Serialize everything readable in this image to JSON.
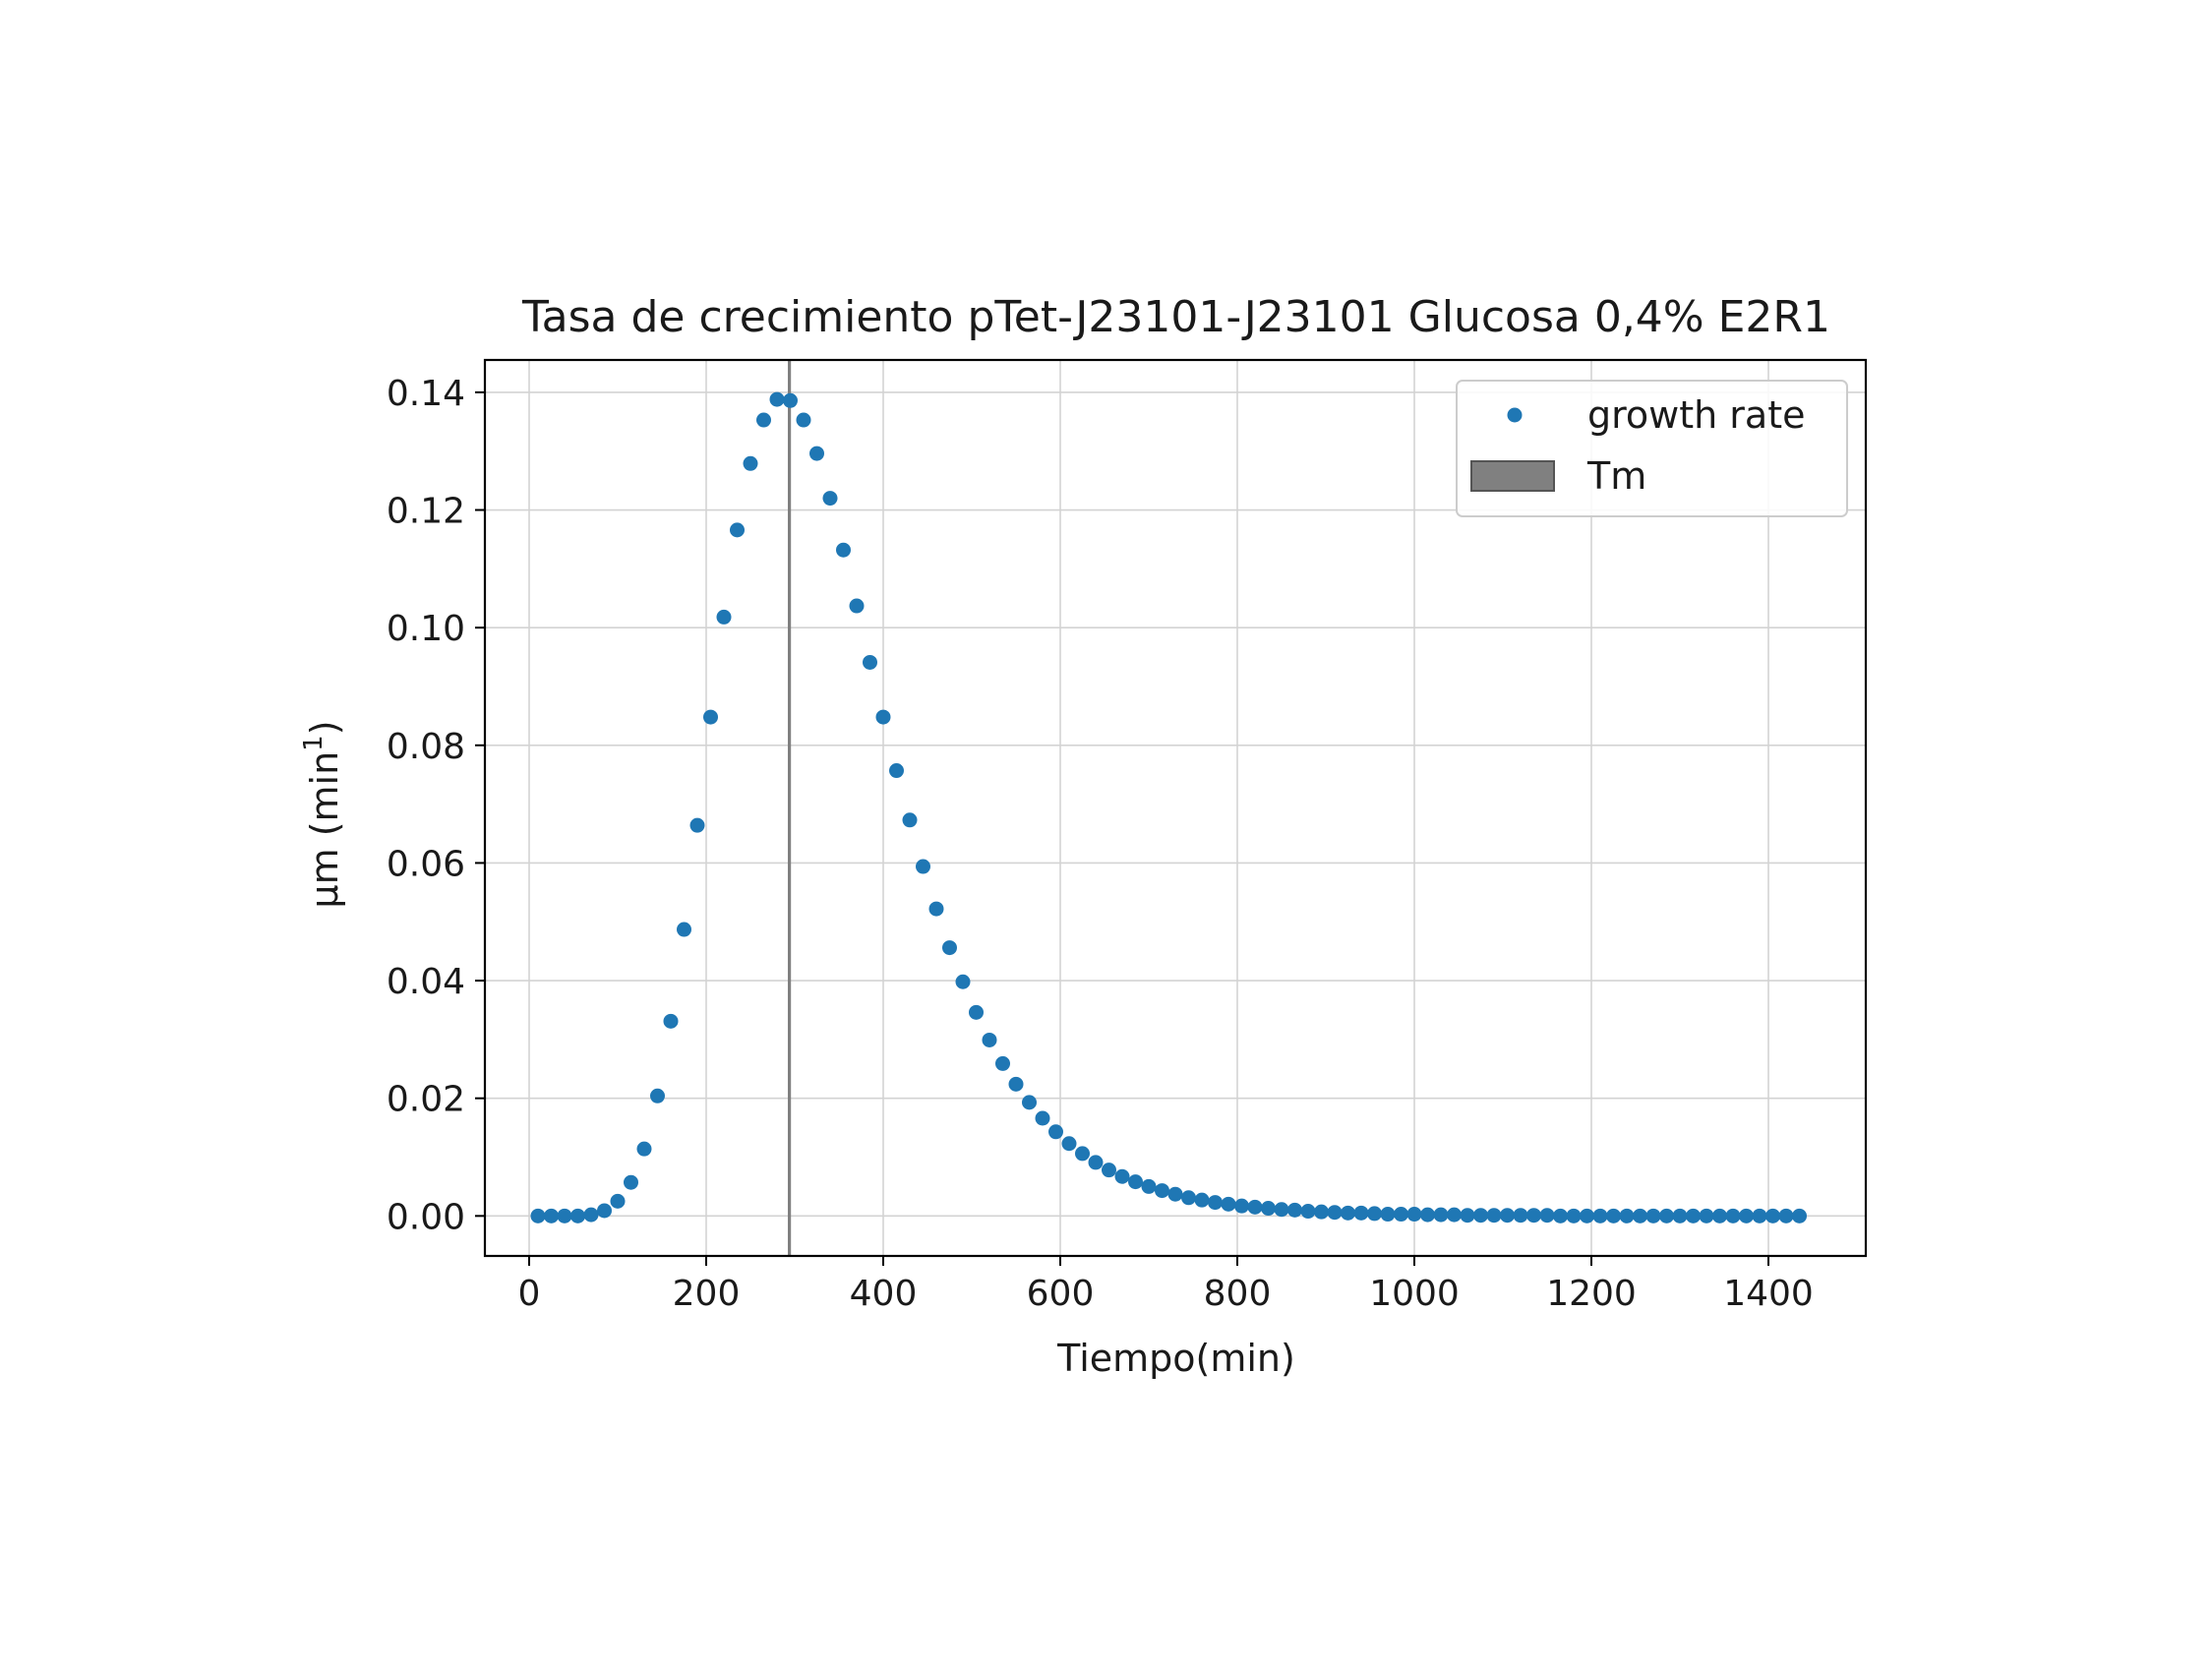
{
  "chart_data": {
    "type": "scatter",
    "title": "Tasa de crecimiento pTet-J23101-J23101 Glucosa 0,4% E2R1",
    "xlabel": "Tiempo(min)",
    "ylabel": "μm (min",
    "ylabel_sup": "1",
    "ylabel_close": ")",
    "xlim": [
      -50,
      1510
    ],
    "ylim": [
      -0.0068,
      0.1455
    ],
    "xticks": [
      0,
      200,
      400,
      600,
      800,
      1000,
      1200,
      1400
    ],
    "xtick_labels": [
      "0",
      "200",
      "400",
      "600",
      "800",
      "1000",
      "1200",
      "1400"
    ],
    "yticks": [
      0.0,
      0.02,
      0.04,
      0.06,
      0.08,
      0.1,
      0.12,
      0.14
    ],
    "ytick_labels": [
      "0.00",
      "0.02",
      "0.04",
      "0.06",
      "0.08",
      "0.10",
      "0.12",
      "0.14"
    ],
    "grid": true,
    "legend_position": "top-right",
    "colors": {
      "series": "#1f77b4",
      "tm_line": "#808080",
      "grid": "#d3d3d3"
    },
    "series": [
      {
        "name": "growth rate",
        "x": [
          10,
          25,
          40,
          55,
          70,
          85,
          100,
          115,
          130,
          145,
          160,
          175,
          190,
          205,
          220,
          235,
          250,
          265,
          280,
          295,
          310,
          325,
          340,
          355,
          370,
          385,
          400,
          415,
          430,
          445,
          460,
          475,
          490,
          505,
          520,
          535,
          550,
          565,
          580,
          595,
          610,
          625,
          640,
          655,
          670,
          685,
          700,
          715,
          730,
          745,
          760,
          775,
          790,
          805,
          820,
          835,
          850,
          865,
          880,
          895,
          910,
          925,
          940,
          955,
          970,
          985,
          1000,
          1015,
          1030,
          1045,
          1060,
          1075,
          1090,
          1105,
          1120,
          1135,
          1150,
          1165,
          1180,
          1195,
          1210,
          1225,
          1240,
          1255,
          1270,
          1285,
          1300,
          1315,
          1330,
          1345,
          1360,
          1375,
          1390,
          1405,
          1420,
          1435
        ],
        "y": [
          0.0,
          0.0,
          0.0,
          0.0,
          0.0002,
          0.0009,
          0.0025,
          0.0057,
          0.0114,
          0.0204,
          0.0331,
          0.0487,
          0.0664,
          0.0848,
          0.1018,
          0.1166,
          0.1279,
          0.1353,
          0.1388,
          0.1386,
          0.1353,
          0.1296,
          0.122,
          0.1132,
          0.1037,
          0.0941,
          0.0848,
          0.0757,
          0.0673,
          0.0594,
          0.0522,
          0.0456,
          0.0398,
          0.0346,
          0.0299,
          0.0259,
          0.0224,
          0.0193,
          0.0166,
          0.0143,
          0.0123,
          0.0106,
          0.0091,
          0.0078,
          0.0067,
          0.0058,
          0.005,
          0.0043,
          0.0037,
          0.0031,
          0.0027,
          0.0023,
          0.002,
          0.0017,
          0.0015,
          0.0013,
          0.0011,
          0.001,
          0.0008,
          0.0007,
          0.0006,
          0.0005,
          0.0005,
          0.0004,
          0.0003,
          0.0003,
          0.0003,
          0.0002,
          0.0002,
          0.0002,
          0.0001,
          0.0001,
          0.0001,
          0.0001,
          0.0001,
          0.0001,
          0.0001,
          0.0,
          0.0,
          0.0,
          0.0,
          0.0,
          0.0,
          0.0,
          0.0,
          0.0,
          0.0,
          0.0,
          0.0,
          0.0,
          0.0,
          0.0,
          0.0,
          0.0,
          0.0,
          0.0
        ]
      }
    ],
    "vline": {
      "name": "Tm",
      "x": 294
    }
  }
}
